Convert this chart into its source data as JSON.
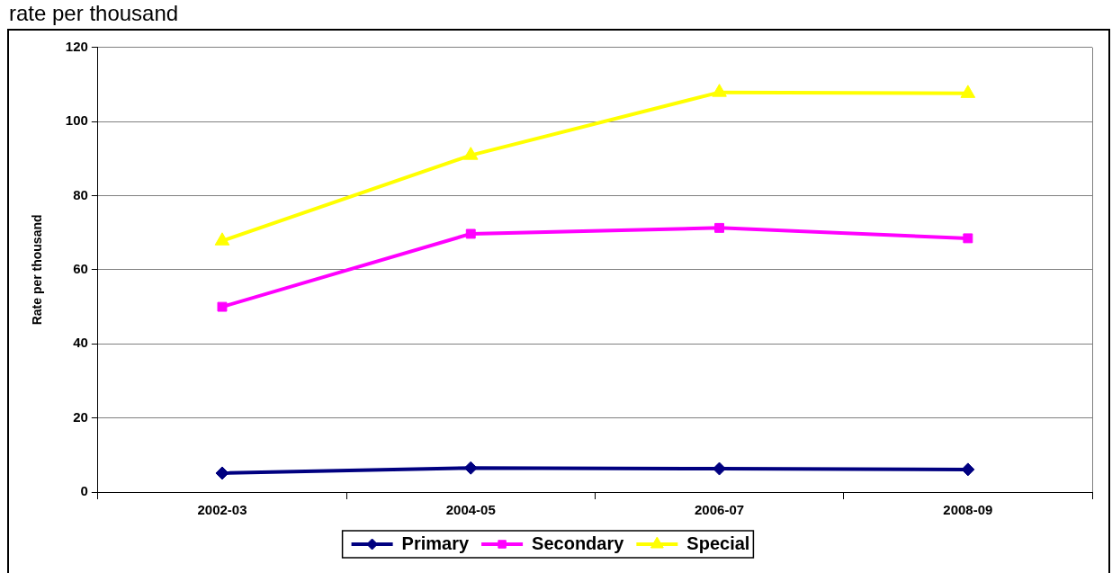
{
  "chart_data": {
    "type": "line",
    "title": "rate per thousand",
    "ylabel": "Rate per thousand",
    "categories": [
      "2002-03",
      "2004-05",
      "2006-07",
      "2008-09"
    ],
    "series": [
      {
        "name": "Primary",
        "color": "#000080",
        "marker": "diamond",
        "values": [
          5.1,
          6.5,
          6.3,
          6.1
        ]
      },
      {
        "name": "Secondary",
        "color": "#ff00ff",
        "marker": "square",
        "values": [
          50,
          69.7,
          71.3,
          68.5
        ]
      },
      {
        "name": "Special",
        "color": "#ffff00",
        "marker": "triangle",
        "values": [
          67.8,
          90.9,
          107.9,
          107.6
        ]
      }
    ],
    "ylim": [
      0,
      120
    ],
    "yticks": [
      0,
      20,
      40,
      60,
      80,
      100,
      120
    ],
    "grid": "y",
    "legend": "bottom",
    "line_style": "solid"
  }
}
